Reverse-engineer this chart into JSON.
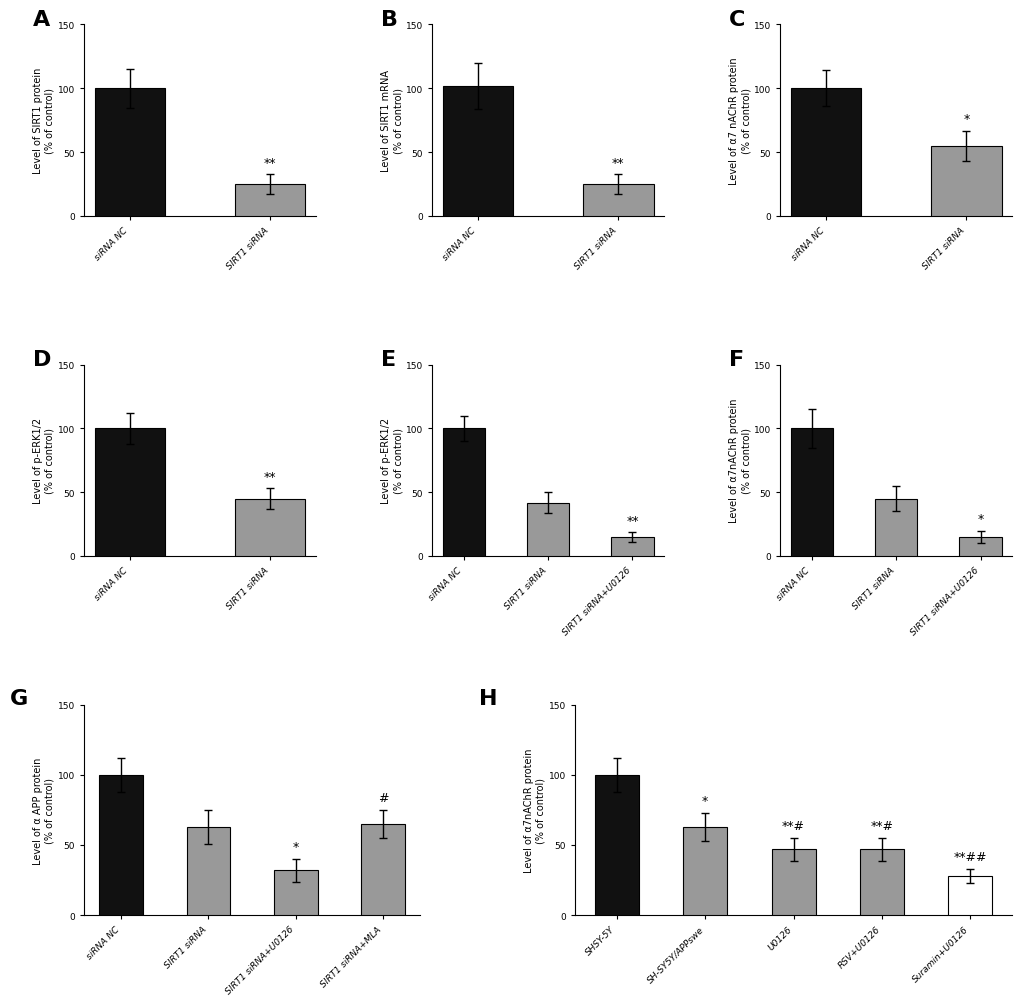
{
  "panel_A": {
    "title": "A",
    "ylabel": "Level of SIRT1 protein\n(% of control)",
    "categories": [
      "siRNA NC",
      "SIRT1 siRNA"
    ],
    "values": [
      100,
      25
    ],
    "errors": [
      15,
      8
    ],
    "colors": [
      "#111111",
      "#999999"
    ],
    "bar_edgecolors": [
      "#000000",
      "#000000"
    ],
    "significance": [
      "",
      "**"
    ],
    "ylim": [
      0,
      150
    ],
    "yticks": [
      0,
      50,
      100,
      150
    ]
  },
  "panel_B": {
    "title": "B",
    "ylabel": "Level of SIRT1 mRNA\n(% of control)",
    "categories": [
      "siRNA NC",
      "SIRT1 siRNA"
    ],
    "values": [
      102,
      25
    ],
    "errors": [
      18,
      8
    ],
    "colors": [
      "#111111",
      "#999999"
    ],
    "bar_edgecolors": [
      "#000000",
      "#000000"
    ],
    "significance": [
      "",
      "**"
    ],
    "ylim": [
      0,
      150
    ],
    "yticks": [
      0,
      50,
      100,
      150
    ]
  },
  "panel_C": {
    "title": "C",
    "ylabel": "Level of α7 nAChR protein\n(% of control)",
    "categories": [
      "siRNA NC",
      "SIRT1 siRNA"
    ],
    "values": [
      100,
      55
    ],
    "errors": [
      14,
      12
    ],
    "colors": [
      "#111111",
      "#999999"
    ],
    "bar_edgecolors": [
      "#000000",
      "#000000"
    ],
    "significance": [
      "",
      "*"
    ],
    "ylim": [
      0,
      150
    ],
    "yticks": [
      0,
      50,
      100,
      150
    ]
  },
  "panel_D": {
    "title": "D",
    "ylabel": "Level of p-ERK1/2\n(% of control)",
    "categories": [
      "siRNA NC",
      "SIRT1 siRNA"
    ],
    "values": [
      100,
      45
    ],
    "errors": [
      12,
      8
    ],
    "colors": [
      "#111111",
      "#999999"
    ],
    "bar_edgecolors": [
      "#000000",
      "#000000"
    ],
    "significance": [
      "",
      "**"
    ],
    "ylim": [
      0,
      150
    ],
    "yticks": [
      0,
      50,
      100,
      150
    ]
  },
  "panel_E": {
    "title": "E",
    "ylabel": "Level of p-ERK1/2\n(% of control)",
    "categories": [
      "siRNA NC",
      "SIRT1 siRNA",
      "SIRT1 siRNA+U0126"
    ],
    "values": [
      100,
      42,
      15
    ],
    "errors": [
      10,
      8,
      4
    ],
    "colors": [
      "#111111",
      "#999999",
      "#999999"
    ],
    "bar_edgecolors": [
      "#000000",
      "#000000",
      "#000000"
    ],
    "significance": [
      "",
      "",
      "**"
    ],
    "ylim": [
      0,
      150
    ],
    "yticks": [
      0,
      50,
      100,
      150
    ]
  },
  "panel_F": {
    "title": "F",
    "ylabel": "Level of α7nAChR protein\n(% of control)",
    "categories": [
      "siRNA NC",
      "SIRT1 siRNA",
      "SIRT1 siRNA+U0126"
    ],
    "values": [
      100,
      45,
      15
    ],
    "errors": [
      15,
      10,
      5
    ],
    "colors": [
      "#111111",
      "#999999",
      "#999999"
    ],
    "bar_edgecolors": [
      "#000000",
      "#000000",
      "#000000"
    ],
    "significance": [
      "",
      "",
      "*"
    ],
    "ylim": [
      0,
      150
    ],
    "yticks": [
      0,
      50,
      100,
      150
    ]
  },
  "panel_G": {
    "title": "G",
    "ylabel": "Level of α APP protein\n(% of control)",
    "categories": [
      "siRNA NC",
      "SIRT1 siRNA",
      "SIRT1 siRNA+U0126",
      "SIRT1 siRNA+MLA"
    ],
    "values": [
      100,
      63,
      32,
      65
    ],
    "errors": [
      12,
      12,
      8,
      10
    ],
    "colors": [
      "#111111",
      "#999999",
      "#999999",
      "#999999"
    ],
    "bar_edgecolors": [
      "#000000",
      "#000000",
      "#000000",
      "#000000"
    ],
    "significance": [
      "",
      "",
      "*",
      "#"
    ],
    "ylim": [
      0,
      150
    ],
    "yticks": [
      0,
      50,
      100,
      150
    ]
  },
  "panel_H": {
    "title": "H",
    "ylabel": "Level of α7nAChR protein\n(% of control)",
    "categories": [
      "SHSY-5Y",
      "SH-SY5Y/APPswe",
      "U0126",
      "RSV+U0126",
      "Suramin+U0126"
    ],
    "values": [
      100,
      63,
      47,
      47,
      28
    ],
    "errors": [
      12,
      10,
      8,
      8,
      5
    ],
    "colors": [
      "#111111",
      "#999999",
      "#999999",
      "#999999",
      "#ffffff"
    ],
    "bar_edgecolors": [
      "#000000",
      "#000000",
      "#000000",
      "#000000",
      "#000000"
    ],
    "significance": [
      "",
      "*",
      "**#",
      "**#",
      "**##"
    ],
    "ylim": [
      0,
      150
    ],
    "yticks": [
      0,
      50,
      100,
      150
    ]
  },
  "background_color": "#ffffff",
  "panel_label_fontsize": 16,
  "axis_label_fontsize": 7,
  "tick_fontsize": 6.5,
  "sig_fontsize": 9,
  "bar_width": 0.5
}
